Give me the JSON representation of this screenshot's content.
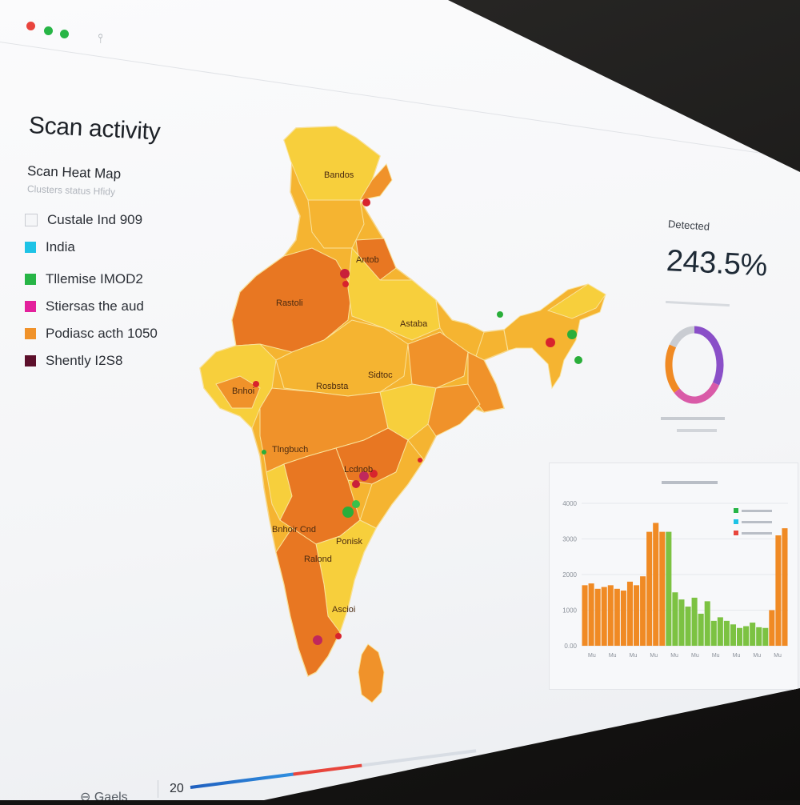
{
  "window": {
    "controls": [
      "close",
      "minimize",
      "maximize"
    ]
  },
  "page": {
    "title": "Scan activity",
    "heatmap_title": "Scan Heat Map",
    "heatmap_subtitle": "Clusters status Hfidy"
  },
  "legend": [
    {
      "label": "Custale Ind 909",
      "color": "#f5f6f8"
    },
    {
      "label": "India",
      "color": "#1ec3e6"
    },
    {
      "label": "Tllemise IMOD2",
      "color": "#27b546"
    },
    {
      "label": "Stiersas the aud",
      "color": "#e3219c"
    },
    {
      "label": "Podiasc acth 1050",
      "color": "#f0922a"
    },
    {
      "label": "Shently I2S8",
      "color": "#5c0f2b"
    }
  ],
  "map": {
    "labels": [
      "Bandos",
      "Rastoli",
      "Antob",
      "Astaba",
      "Rosbsta",
      "Sidtoc",
      "Tlngbuch",
      "Lcdnob",
      "Ponisk",
      "Bnhoir Cnd",
      "Ralond",
      "Bnhoi",
      "Ascioi"
    ],
    "colors": {
      "yellow": "#f7cf3c",
      "light_orange": "#f5b431",
      "orange": "#f0922a",
      "dark_orange": "#e87722",
      "hotspot_red": "#d8232d",
      "hotspot_green": "#2aae3a"
    }
  },
  "stat": {
    "label": "Detected",
    "value": "243.5%",
    "donut": [
      {
        "name": "purple",
        "fraction": 0.34,
        "color": "#8a4fc8"
      },
      {
        "name": "pink",
        "fraction": 0.28,
        "color": "#d95ba8"
      },
      {
        "name": "orange",
        "fraction": 0.22,
        "color": "#f08a24"
      },
      {
        "name": "grey",
        "fraction": 0.16,
        "color": "#c9ccd2"
      }
    ]
  },
  "chart_data": {
    "type": "bar",
    "title": "",
    "yticks": [
      "0.00",
      "1000",
      "2000",
      "3000",
      "4000"
    ],
    "ylim": [
      0,
      4000
    ],
    "series": [
      {
        "color": "#f08a24",
        "values": [
          1700,
          1750,
          1600,
          1650,
          1700,
          1600,
          1550,
          1800,
          1700,
          1950,
          3200,
          3450,
          3200
        ]
      },
      {
        "color": "#7cc242",
        "values": [
          3200,
          1500,
          1300,
          1100,
          1350,
          900,
          1250,
          700,
          800,
          700,
          600,
          500,
          550,
          650,
          520,
          500
        ]
      },
      {
        "color": "#f08a24",
        "values": [
          1000,
          3100,
          3300
        ]
      }
    ],
    "legend_colors": [
      "#27b546",
      "#1ec3e6",
      "#e8453c"
    ],
    "xticks": [
      "Mu",
      "Mu",
      "Mu",
      "Mu",
      "Mu",
      "Mu",
      "Mu",
      "Mu",
      "Mu",
      "Mu"
    ]
  },
  "footer": {
    "control_label": "Gaels",
    "page_number": "20",
    "progress": 0.6
  }
}
